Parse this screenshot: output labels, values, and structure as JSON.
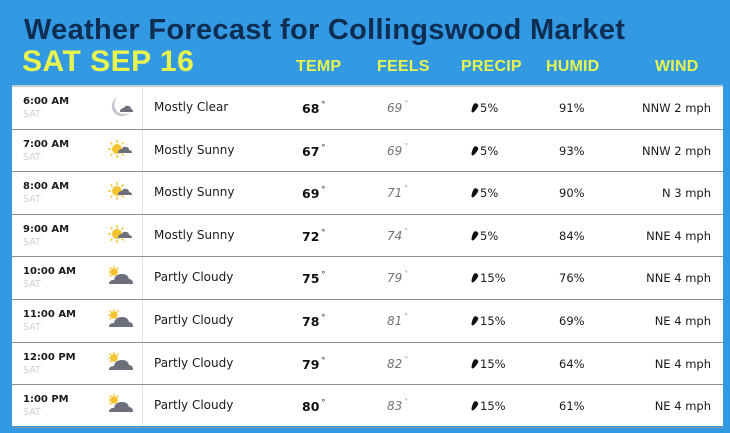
{
  "header": {
    "title": "Weather Forecast for Collingswood Market",
    "date": "SAT SEP 16"
  },
  "columns": {
    "temp": "TEMP",
    "feels": "FEELS",
    "precip": "PRECIP",
    "humid": "HUMID",
    "wind": "WIND"
  },
  "colors": {
    "background": "#3399e2",
    "title": "#0e2d52",
    "accent_yellow": "#e8f54f"
  },
  "rows": [
    {
      "time": "6:00 AM",
      "day": "SAT",
      "icon": "moon-cloud-icon",
      "condition": "Mostly Clear",
      "temp": "68",
      "feels": "69",
      "precip": "5%",
      "humid": "91%",
      "wind": "NNW 2 mph"
    },
    {
      "time": "7:00 AM",
      "day": "SAT",
      "icon": "sun-cloud-icon",
      "condition": "Mostly Sunny",
      "temp": "67",
      "feels": "69",
      "precip": "5%",
      "humid": "93%",
      "wind": "NNW 2 mph"
    },
    {
      "time": "8:00 AM",
      "day": "SAT",
      "icon": "sun-cloud-icon",
      "condition": "Mostly Sunny",
      "temp": "69",
      "feels": "71",
      "precip": "5%",
      "humid": "90%",
      "wind": "N 3 mph"
    },
    {
      "time": "9:00 AM",
      "day": "SAT",
      "icon": "sun-cloud-icon",
      "condition": "Mostly Sunny",
      "temp": "72",
      "feels": "74",
      "precip": "5%",
      "humid": "84%",
      "wind": "NNE 4 mph"
    },
    {
      "time": "10:00 AM",
      "day": "SAT",
      "icon": "partly-cloudy-icon",
      "condition": "Partly Cloudy",
      "temp": "75",
      "feels": "79",
      "precip": "15%",
      "humid": "76%",
      "wind": "NNE 4 mph"
    },
    {
      "time": "11:00 AM",
      "day": "SAT",
      "icon": "partly-cloudy-icon",
      "condition": "Partly Cloudy",
      "temp": "78",
      "feels": "81",
      "precip": "15%",
      "humid": "69%",
      "wind": "NE 4 mph"
    },
    {
      "time": "12:00 PM",
      "day": "SAT",
      "icon": "partly-cloudy-icon",
      "condition": "Partly Cloudy",
      "temp": "79",
      "feels": "82",
      "precip": "15%",
      "humid": "64%",
      "wind": "NE 4 mph"
    },
    {
      "time": "1:00 PM",
      "day": "SAT",
      "icon": "partly-cloudy-icon",
      "condition": "Partly Cloudy",
      "temp": "80",
      "feels": "83",
      "precip": "15%",
      "humid": "61%",
      "wind": "NE 4 mph"
    }
  ],
  "degree_symbol": "°"
}
